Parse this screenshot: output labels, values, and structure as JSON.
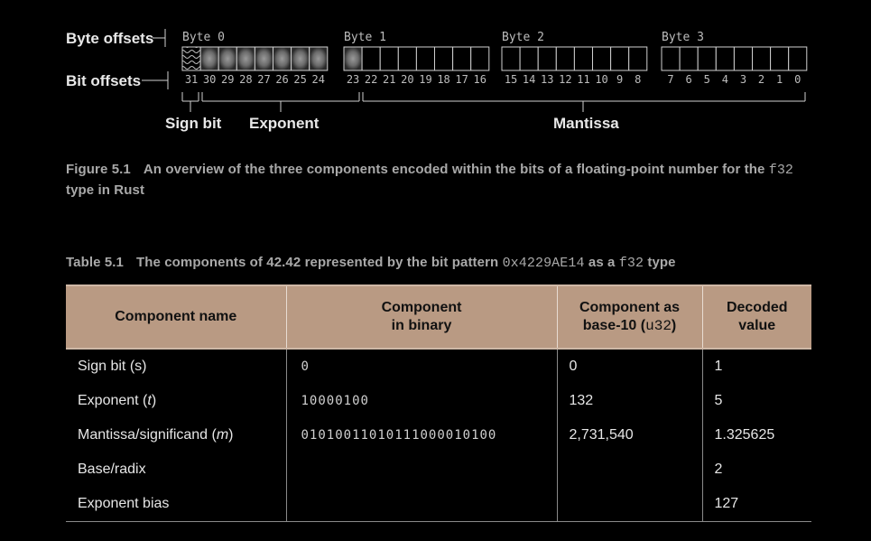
{
  "figure": {
    "byte_offsets_label": "Byte offsets",
    "bit_offsets_label": "Bit offsets",
    "byte_labels": [
      "Byte 0",
      "Byte 1",
      "Byte 2",
      "Byte 3"
    ],
    "bit_numbers": [
      "31",
      "30",
      "29",
      "28",
      "27",
      "26",
      "25",
      "24",
      "23",
      "22",
      "21",
      "20",
      "19",
      "18",
      "17",
      "16",
      "15",
      "14",
      "13",
      "12",
      "11",
      "10",
      "9",
      "8",
      "7",
      "6",
      "5",
      "4",
      "3",
      "2",
      "1",
      "0"
    ],
    "component_labels": {
      "sign": "Sign bit",
      "exponent": "Exponent",
      "mantissa": "Mantissa"
    }
  },
  "figure_caption": {
    "number": "Figure 5.1",
    "text_before": "An overview of the three components encoded within the bits of a floating-point number for the",
    "code": "f32",
    "text_after": "type in Rust"
  },
  "table_caption": {
    "number": "Table 5.1",
    "text_before": "The components of 42.42 represented by the bit pattern",
    "code1": "0x4229AE14",
    "text_middle": "as a",
    "code2": "f32",
    "text_after": "type"
  },
  "table": {
    "headers": [
      {
        "line1": "Component name",
        "line2": ""
      },
      {
        "line1": "Component",
        "line2": "in binary"
      },
      {
        "line1": "Component as",
        "line2_text": "base-10 (",
        "line2_code": "u32",
        "line2_end": ")"
      },
      {
        "line1": "Decoded",
        "line2": "value"
      }
    ],
    "rows": [
      {
        "name": "Sign bit (s)",
        "binary": "0",
        "base10": "0",
        "decoded": "1"
      },
      {
        "name_before": "Exponent (",
        "name_var": "t",
        "name_after": ")",
        "binary": "10000100",
        "base10": "132",
        "decoded": "5"
      },
      {
        "name_before": "Mantissa/significand (",
        "name_var": "m",
        "name_after": ")",
        "binary": "01010011010111000010100",
        "base10": "2,731,540",
        "decoded": "1.325625"
      },
      {
        "name": "Base/radix",
        "binary": "",
        "base10": "",
        "decoded": "2"
      },
      {
        "name": "Exponent bias",
        "binary": "",
        "base10": "",
        "decoded": "127"
      }
    ]
  }
}
